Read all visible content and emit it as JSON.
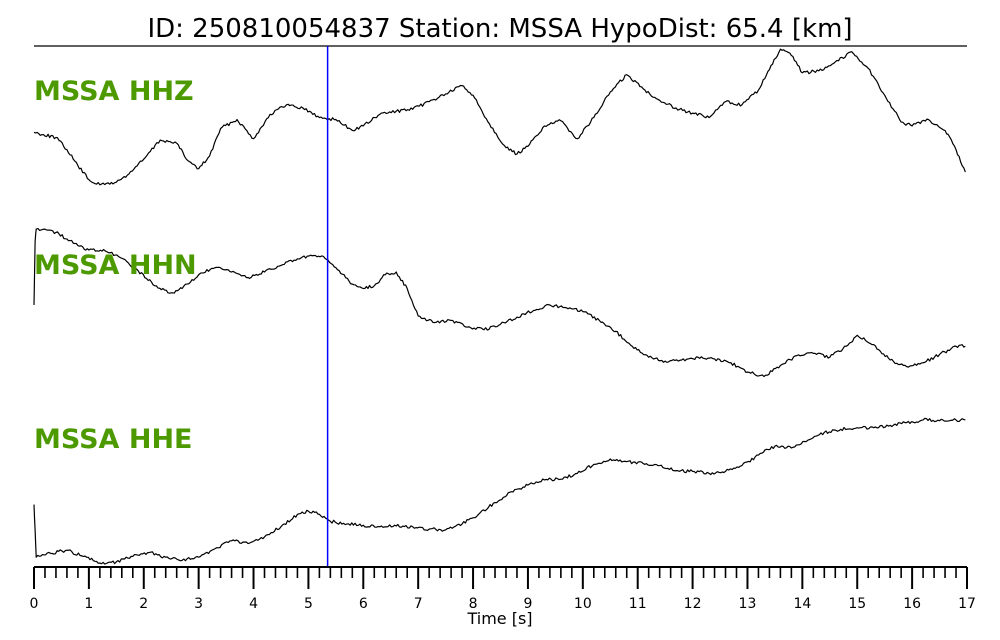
{
  "chart_data": {
    "type": "line",
    "title": "ID: 250810054837   Station: MSSA   HypoDist:    65.4 [km]",
    "xlabel": "Time [s]",
    "xlim": [
      0,
      17
    ],
    "x_ticks": [
      0,
      1,
      2,
      3,
      4,
      5,
      6,
      7,
      8,
      9,
      10,
      11,
      12,
      13,
      14,
      15,
      16,
      17
    ],
    "x_minor_step": 0.2,
    "pick_time": 5.35,
    "trace_color": "#000000",
    "label_color": "#4c9a00",
    "pick_color": "#0000ff",
    "series": [
      {
        "name": "MSSA HHZ",
        "x": [
          0,
          0.4,
          0.6,
          0.8,
          1.0,
          1.2,
          1.5,
          1.7,
          2.0,
          2.3,
          2.6,
          2.8,
          3.0,
          3.2,
          3.4,
          3.7,
          4.0,
          4.3,
          4.6,
          4.9,
          5.2,
          5.5,
          5.8,
          6.0,
          6.3,
          6.6,
          6.9,
          7.2,
          7.5,
          7.8,
          8.0,
          8.3,
          8.6,
          8.8,
          9.0,
          9.3,
          9.6,
          9.9,
          10.2,
          10.5,
          10.8,
          11.1,
          11.4,
          11.7,
          12.0,
          12.3,
          12.6,
          12.9,
          13.2,
          13.4,
          13.6,
          13.8,
          14.0,
          14.3,
          14.6,
          14.9,
          15.2,
          15.5,
          15.8,
          16.0,
          16.3,
          16.6,
          16.8,
          16.97
        ],
        "y": [
          0.62,
          0.54,
          0.35,
          0.1,
          -0.12,
          -0.2,
          -0.16,
          -0.05,
          0.2,
          0.5,
          0.45,
          0.18,
          0.05,
          0.25,
          0.68,
          0.82,
          0.52,
          0.9,
          1.05,
          1.0,
          0.85,
          0.82,
          0.65,
          0.72,
          0.9,
          0.95,
          0.98,
          1.1,
          1.22,
          1.35,
          1.2,
          0.75,
          0.38,
          0.28,
          0.4,
          0.72,
          0.8,
          0.52,
          0.85,
          1.25,
          1.52,
          1.3,
          1.12,
          1.0,
          0.92,
          0.85,
          1.1,
          1.05,
          1.28,
          1.6,
          1.92,
          1.82,
          1.55,
          1.58,
          1.72,
          1.88,
          1.62,
          1.2,
          0.78,
          0.72,
          0.82,
          0.65,
          0.35,
          0.0
        ]
      },
      {
        "name": "MSSA HHN",
        "x": [
          0,
          0.02,
          0.04,
          0.2,
          0.4,
          0.6,
          0.8,
          1.0,
          1.3,
          1.6,
          1.9,
          2.2,
          2.5,
          2.7,
          3.0,
          3.3,
          3.6,
          3.9,
          4.2,
          4.5,
          4.8,
          5.1,
          5.3,
          5.5,
          5.8,
          6.0,
          6.2,
          6.4,
          6.6,
          6.8,
          7.0,
          7.3,
          7.6,
          7.9,
          8.2,
          8.5,
          8.8,
          9.1,
          9.4,
          9.7,
          10.0,
          10.3,
          10.6,
          10.9,
          11.2,
          11.5,
          11.8,
          12.1,
          12.4,
          12.7,
          13.0,
          13.3,
          13.6,
          13.9,
          14.2,
          14.5,
          14.8,
          15.0,
          15.3,
          15.6,
          15.9,
          16.2,
          16.5,
          16.8,
          16.97
        ],
        "y": [
          0.0,
          1.15,
          1.38,
          1.38,
          1.32,
          1.2,
          1.08,
          1.0,
          0.98,
          0.85,
          0.62,
          0.35,
          0.22,
          0.3,
          0.55,
          0.68,
          0.6,
          0.5,
          0.6,
          0.72,
          0.84,
          0.9,
          0.85,
          0.68,
          0.38,
          0.3,
          0.35,
          0.55,
          0.6,
          0.3,
          -0.2,
          -0.32,
          -0.28,
          -0.4,
          -0.45,
          -0.35,
          -0.22,
          -0.1,
          0.0,
          -0.05,
          -0.12,
          -0.28,
          -0.48,
          -0.75,
          -0.95,
          -1.02,
          -1.0,
          -0.95,
          -0.98,
          -1.05,
          -1.22,
          -1.3,
          -1.1,
          -0.92,
          -0.88,
          -0.95,
          -0.75,
          -0.55,
          -0.72,
          -1.0,
          -1.12,
          -1.05,
          -0.9,
          -0.75,
          -0.75
        ]
      },
      {
        "name": "MSSA HHE",
        "x": [
          0,
          0.02,
          0.04,
          0.3,
          0.6,
          0.9,
          1.2,
          1.5,
          1.8,
          2.1,
          2.4,
          2.7,
          3.0,
          3.3,
          3.6,
          3.9,
          4.2,
          4.5,
          4.8,
          5.0,
          5.2,
          5.4,
          5.7,
          6.0,
          6.3,
          6.6,
          6.9,
          7.2,
          7.5,
          7.8,
          8.1,
          8.4,
          8.7,
          9.0,
          9.3,
          9.6,
          9.9,
          10.2,
          10.5,
          10.8,
          11.1,
          11.4,
          11.7,
          12.0,
          12.3,
          12.6,
          12.9,
          13.2,
          13.5,
          13.8,
          14.1,
          14.4,
          14.7,
          15.0,
          15.3,
          15.6,
          15.9,
          16.2,
          16.5,
          16.8,
          16.97
        ],
        "y": [
          1.55,
          0.9,
          0.2,
          0.3,
          0.38,
          0.22,
          0.05,
          0.08,
          0.22,
          0.32,
          0.2,
          0.12,
          0.2,
          0.42,
          0.62,
          0.55,
          0.72,
          0.98,
          1.3,
          1.38,
          1.3,
          1.12,
          1.05,
          1.02,
          0.98,
          1.0,
          0.98,
          0.92,
          0.9,
          1.05,
          1.3,
          1.6,
          1.88,
          2.05,
          2.18,
          2.2,
          2.35,
          2.58,
          2.72,
          2.65,
          2.6,
          2.55,
          2.42,
          2.4,
          2.35,
          2.4,
          2.55,
          2.82,
          3.05,
          3.0,
          3.2,
          3.4,
          3.48,
          3.52,
          3.52,
          3.58,
          3.65,
          3.72,
          3.7,
          3.72,
          3.72
        ]
      }
    ]
  }
}
